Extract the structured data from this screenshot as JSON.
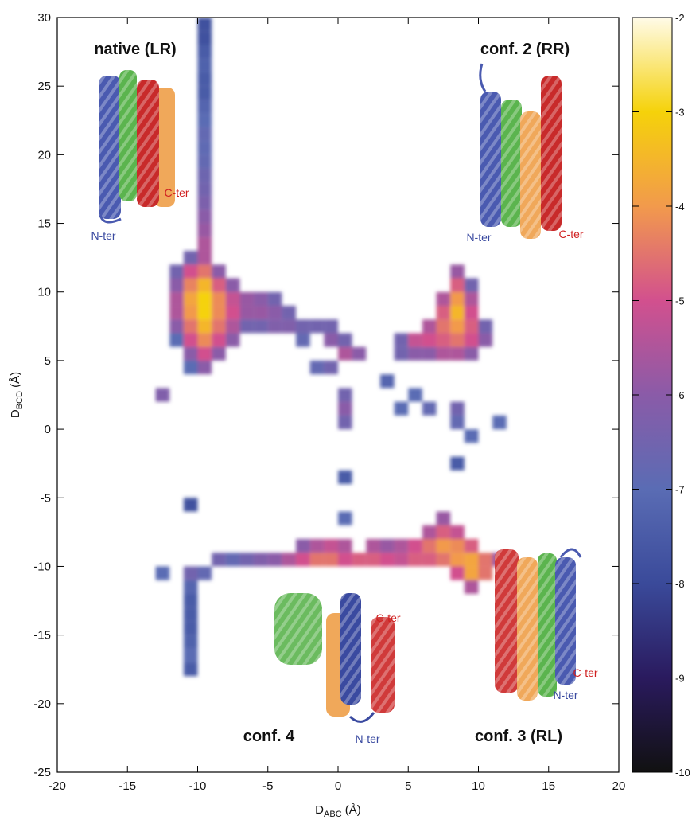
{
  "chart_data": {
    "type": "heatmap",
    "xlabel": "D",
    "xlabel_sub": "ABC",
    "xlabel_unit": " (Å)",
    "ylabel": "D",
    "ylabel_sub": "BCD",
    "ylabel_unit": " (Å)",
    "xlim": [
      -20,
      20
    ],
    "xticks": [
      -20,
      -15,
      -10,
      -5,
      0,
      5,
      10,
      15,
      20
    ],
    "ylim": [
      -25,
      30
    ],
    "yticks": [
      -25,
      -20,
      -15,
      -10,
      -5,
      0,
      5,
      10,
      15,
      20,
      25,
      30
    ],
    "bin_size": 1,
    "cells": [
      [
        -9.5,
        13.5,
        -5.5
      ],
      [
        -9.5,
        14.5,
        -5.8
      ],
      [
        -9.5,
        15.5,
        -6
      ],
      [
        -9.5,
        16.5,
        -6.3
      ],
      [
        -9.5,
        17.5,
        -6.5
      ],
      [
        -9.5,
        18.5,
        -6.6
      ],
      [
        -9.5,
        19.5,
        -6.8
      ],
      [
        -9.5,
        20.5,
        -6.9
      ],
      [
        -9.5,
        21.5,
        -6.8
      ],
      [
        -9.5,
        22.5,
        -7
      ],
      [
        -9.5,
        23.5,
        -7.2
      ],
      [
        -9.5,
        24.5,
        -7.5
      ],
      [
        -9.5,
        25.5,
        -7.5
      ],
      [
        -9.5,
        26.5,
        -7.3
      ],
      [
        -9.5,
        27.5,
        -7.5
      ],
      [
        -9.5,
        28.5,
        -7.8
      ],
      [
        -9.5,
        29.5,
        -7.8
      ],
      [
        -11.5,
        6.5,
        -7
      ],
      [
        -11.5,
        7.5,
        -6
      ],
      [
        -11.5,
        8.5,
        -5.5
      ],
      [
        -11.5,
        9.5,
        -5.5
      ],
      [
        -11.5,
        10.5,
        -6
      ],
      [
        -11.5,
        11.5,
        -6.5
      ],
      [
        -10.5,
        4.5,
        -7
      ],
      [
        -10.5,
        5.5,
        -6
      ],
      [
        -10.5,
        6.5,
        -5
      ],
      [
        -10.5,
        7.5,
        -4.5
      ],
      [
        -10.5,
        8.5,
        -4
      ],
      [
        -10.5,
        9.5,
        -3.8
      ],
      [
        -10.5,
        10.5,
        -4.3
      ],
      [
        -10.5,
        11.5,
        -5
      ],
      [
        -10.5,
        12.5,
        -6.5
      ],
      [
        -9.5,
        4.5,
        -6
      ],
      [
        -9.5,
        5.5,
        -5
      ],
      [
        -9.5,
        6.5,
        -4.2
      ],
      [
        -9.5,
        7.5,
        -3.5
      ],
      [
        -9.5,
        8.5,
        -3
      ],
      [
        -9.5,
        9.5,
        -3
      ],
      [
        -9.5,
        10.5,
        -3.5
      ],
      [
        -9.5,
        11.5,
        -4.5
      ],
      [
        -9.5,
        12.5,
        -5.5
      ],
      [
        -8.5,
        5.5,
        -6
      ],
      [
        -8.5,
        6.5,
        -5
      ],
      [
        -8.5,
        7.5,
        -4.5
      ],
      [
        -8.5,
        8.5,
        -4.2
      ],
      [
        -8.5,
        9.5,
        -4.2
      ],
      [
        -8.5,
        10.5,
        -4.8
      ],
      [
        -8.5,
        11.5,
        -6
      ],
      [
        -7.5,
        6.5,
        -6
      ],
      [
        -7.5,
        7.5,
        -5.5
      ],
      [
        -7.5,
        8.5,
        -5
      ],
      [
        -7.5,
        9.5,
        -5.2
      ],
      [
        -7.5,
        10.5,
        -6
      ],
      [
        -6.5,
        7.5,
        -6.5
      ],
      [
        -6.5,
        8.5,
        -5.8
      ],
      [
        -6.5,
        9.5,
        -5.8
      ],
      [
        -5.5,
        7.5,
        -6.5
      ],
      [
        -5.5,
        8.5,
        -5.8
      ],
      [
        -5.5,
        9.5,
        -6
      ],
      [
        -4.5,
        7.5,
        -6.2
      ],
      [
        -4.5,
        8.5,
        -6
      ],
      [
        -4.5,
        9.5,
        -6.5
      ],
      [
        -3.5,
        7.5,
        -6.2
      ],
      [
        -3.5,
        8.5,
        -6.5
      ],
      [
        -2.5,
        6.5,
        -6.8
      ],
      [
        -2.5,
        7.5,
        -6.5
      ],
      [
        -1.5,
        7.5,
        -6.5
      ],
      [
        -0.5,
        6.5,
        -6
      ],
      [
        -0.5,
        7.5,
        -6.5
      ],
      [
        0.5,
        5.5,
        -5.5
      ],
      [
        0.5,
        6.5,
        -6.5
      ],
      [
        1.5,
        5.5,
        -6
      ],
      [
        -1.5,
        4.5,
        -6.8
      ],
      [
        -0.5,
        4.5,
        -6.5
      ],
      [
        0.5,
        2.5,
        -6.5
      ],
      [
        0.5,
        1.5,
        -6
      ],
      [
        0.5,
        0.5,
        -6.5
      ],
      [
        -12.5,
        2.5,
        -6.2
      ],
      [
        -12.5,
        -10.5,
        -7
      ],
      [
        4.5,
        5.5,
        -6.5
      ],
      [
        4.5,
        6.5,
        -6.5
      ],
      [
        5.5,
        5.5,
        -6
      ],
      [
        5.5,
        6.5,
        -5.2
      ],
      [
        6.5,
        5.5,
        -6
      ],
      [
        6.5,
        6.5,
        -5
      ],
      [
        6.5,
        7.5,
        -5.5
      ],
      [
        7.5,
        5.5,
        -5.5
      ],
      [
        7.5,
        6.5,
        -4.8
      ],
      [
        7.5,
        7.5,
        -4.5
      ],
      [
        7.5,
        8.5,
        -4.8
      ],
      [
        7.5,
        9.5,
        -5.5
      ],
      [
        8.5,
        5.5,
        -5.5
      ],
      [
        8.5,
        6.5,
        -4.5
      ],
      [
        8.5,
        7.5,
        -4
      ],
      [
        8.5,
        8.5,
        -3.5
      ],
      [
        8.5,
        9.5,
        -4
      ],
      [
        8.5,
        10.5,
        -4.8
      ],
      [
        8.5,
        11.5,
        -5.8
      ],
      [
        9.5,
        5.5,
        -6
      ],
      [
        9.5,
        6.5,
        -5
      ],
      [
        9.5,
        7.5,
        -4.8
      ],
      [
        9.5,
        8.5,
        -5
      ],
      [
        9.5,
        9.5,
        -5.5
      ],
      [
        9.5,
        10.5,
        -6.5
      ],
      [
        10.5,
        6.5,
        -6
      ],
      [
        10.5,
        7.5,
        -6.5
      ],
      [
        4.5,
        1.5,
        -7
      ],
      [
        5.5,
        2.5,
        -7
      ],
      [
        6.5,
        1.5,
        -6.8
      ],
      [
        8.5,
        1.5,
        -6.5
      ],
      [
        8.5,
        0.5,
        -6.8
      ],
      [
        9.5,
        -0.5,
        -7
      ],
      [
        11.5,
        0.5,
        -7
      ],
      [
        3.5,
        3.5,
        -7.2
      ],
      [
        8.5,
        -2.5,
        -7.5
      ],
      [
        0.5,
        -3.5,
        -7.5
      ],
      [
        0.5,
        -6.5,
        -7
      ],
      [
        -10.5,
        -5.5,
        -7.8
      ],
      [
        -10.5,
        -11.5,
        -7.2
      ],
      [
        -10.5,
        -12.5,
        -7.5
      ],
      [
        -10.5,
        -13.5,
        -7.5
      ],
      [
        -10.5,
        -14.5,
        -7.5
      ],
      [
        -10.5,
        -15.5,
        -7.3
      ],
      [
        -10.5,
        -16.5,
        -7
      ],
      [
        -10.5,
        -17.5,
        -7.5
      ],
      [
        -10.5,
        -10.5,
        -6.5
      ],
      [
        -9.5,
        -10.5,
        -6.8
      ],
      [
        -8.5,
        -9.5,
        -6.5
      ],
      [
        -7.5,
        -9.5,
        -6.8
      ],
      [
        -6.5,
        -9.5,
        -6.5
      ],
      [
        -5.5,
        -9.5,
        -6.2
      ],
      [
        -4.5,
        -9.5,
        -6
      ],
      [
        -3.5,
        -9.5,
        -5.5
      ],
      [
        -2.5,
        -9.5,
        -5
      ],
      [
        -2.5,
        -8.5,
        -6
      ],
      [
        -1.5,
        -9.5,
        -4.5
      ],
      [
        -1.5,
        -8.5,
        -5.5
      ],
      [
        -0.5,
        -9.5,
        -4.5
      ],
      [
        -0.5,
        -8.5,
        -5.2
      ],
      [
        0.5,
        -9.5,
        -5
      ],
      [
        0.5,
        -8.5,
        -5.5
      ],
      [
        1.5,
        -9.5,
        -4.8
      ],
      [
        2.5,
        -9.5,
        -4.8
      ],
      [
        2.5,
        -8.5,
        -5.5
      ],
      [
        3.5,
        -9.5,
        -5
      ],
      [
        3.5,
        -8.5,
        -5.8
      ],
      [
        4.5,
        -9.5,
        -5.2
      ],
      [
        4.5,
        -8.5,
        -5.5
      ],
      [
        5.5,
        -9.5,
        -4.8
      ],
      [
        5.5,
        -8.5,
        -5
      ],
      [
        6.5,
        -9.5,
        -4.8
      ],
      [
        6.5,
        -8.5,
        -4.5
      ],
      [
        6.5,
        -7.5,
        -5.5
      ],
      [
        7.5,
        -9.5,
        -4.5
      ],
      [
        7.5,
        -8.5,
        -4
      ],
      [
        7.5,
        -7.5,
        -4.8
      ],
      [
        7.5,
        -6.5,
        -5.8
      ],
      [
        8.5,
        -9.5,
        -4
      ],
      [
        8.5,
        -8.5,
        -4.2
      ],
      [
        8.5,
        -7.5,
        -5.2
      ],
      [
        8.5,
        -10.5,
        -5
      ],
      [
        9.5,
        -9.5,
        -3.8
      ],
      [
        9.5,
        -10.5,
        -3.8
      ],
      [
        9.5,
        -8.5,
        -4.8
      ],
      [
        9.5,
        -11.5,
        -5.5
      ],
      [
        10.5,
        -9.5,
        -4.5
      ],
      [
        10.5,
        -10.5,
        -4.5
      ],
      [
        11.5,
        -9.5,
        -5.8
      ]
    ],
    "colorbar": {
      "lim": [
        -10,
        -2
      ],
      "ticks": [
        -2,
        -3,
        -4,
        -5,
        -6,
        -7,
        -8,
        -9,
        -10
      ],
      "colors": [
        "#111111",
        "#2a1a5e",
        "#3a4a9a",
        "#5a6cb4",
        "#8a5ba8",
        "#d2508e",
        "#f29a4c",
        "#f5d20a",
        "#fffbe8"
      ]
    },
    "annotations": {
      "native": "native (LR)",
      "conf2": "conf. 2 (RR)",
      "conf4": "conf. 4",
      "conf3": "conf. 3 (RL)",
      "native_n": "N-ter",
      "native_c": "C-ter",
      "conf2_n": "N-ter",
      "conf2_c": "C-ter",
      "conf4_c": "C-ter",
      "conf4_n": "N-ter",
      "conf3_c": "C-ter",
      "conf3_n": "N-ter"
    }
  }
}
